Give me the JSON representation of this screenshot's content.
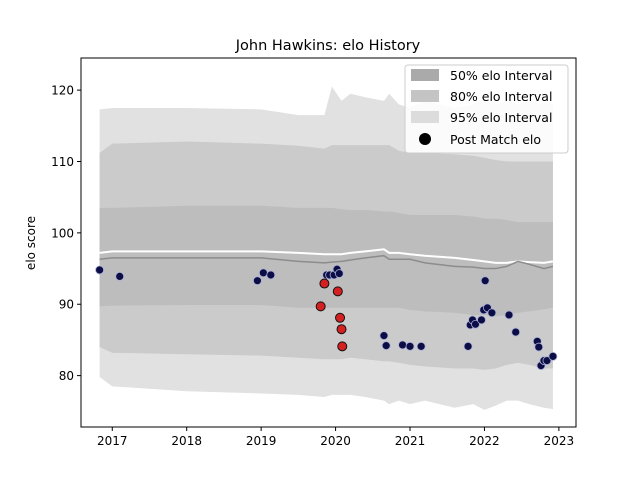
{
  "chart_data": {
    "type": "line",
    "title": "John Hawkins: elo History",
    "xlabel": "",
    "ylabel": "elo score",
    "xlim": [
      2016.58,
      2023.23
    ],
    "ylim": [
      72.8,
      124.5
    ],
    "x_ticks": [
      2017,
      2018,
      2019,
      2020,
      2021,
      2022,
      2023
    ],
    "x_tick_labels": [
      "2017",
      "2018",
      "2019",
      "2020",
      "2021",
      "2022",
      "2023"
    ],
    "y_ticks": [
      80,
      90,
      100,
      110,
      120
    ],
    "y_tick_labels": [
      "80",
      "90",
      "100",
      "110",
      "120"
    ],
    "legend": {
      "position": "top-right",
      "entries": [
        "50% elo Interval",
        "80% elo Interval",
        "95% elo Interval",
        "Post Match elo"
      ]
    },
    "band_x": [
      2016.83,
      2017.0,
      2018.0,
      2019.0,
      2019.5,
      2019.85,
      2019.95,
      2020.08,
      2020.2,
      2020.4,
      2020.65,
      2020.72,
      2020.85,
      2021.0,
      2021.2,
      2021.6,
      2021.85,
      2022.0,
      2022.15,
      2022.3,
      2022.45,
      2022.6,
      2022.8,
      2022.92
    ],
    "bands": {
      "p95_upper": [
        117.3,
        117.5,
        117.5,
        117.3,
        116.5,
        116.5,
        120.5,
        118.5,
        119.5,
        119.0,
        118.5,
        119.5,
        118.0,
        117.5,
        118.5,
        117.5,
        118.0,
        119.0,
        118.0,
        118.5,
        118.0,
        118.5,
        118.0,
        118.0
      ],
      "p80_upper": [
        111.2,
        112.5,
        112.8,
        112.5,
        112.2,
        111.8,
        112.3,
        112.3,
        112.3,
        112.3,
        112.3,
        112.3,
        111.5,
        111.2,
        111.2,
        111.0,
        110.8,
        110.5,
        110.2,
        110.0,
        110.0,
        110.0,
        110.0,
        110.0
      ],
      "p50_upper": [
        103.5,
        103.5,
        103.8,
        103.8,
        103.5,
        103.5,
        103.5,
        103.3,
        103.2,
        103.2,
        103.0,
        103.0,
        102.8,
        102.5,
        102.5,
        102.5,
        102.3,
        102.0,
        102.0,
        101.8,
        101.5,
        101.5,
        101.5,
        101.5
      ],
      "p50_lower": [
        89.7,
        89.8,
        89.9,
        89.9,
        89.5,
        89.5,
        89.5,
        89.5,
        89.5,
        89.5,
        89.5,
        89.5,
        89.5,
        89.2,
        89.0,
        88.8,
        88.5,
        88.5,
        88.3,
        88.5,
        88.8,
        89.0,
        89.3,
        89.5
      ],
      "p80_lower": [
        84.0,
        83.2,
        83.0,
        82.8,
        82.5,
        82.3,
        82.3,
        82.3,
        82.5,
        82.3,
        82.0,
        82.0,
        81.8,
        81.5,
        81.3,
        81.0,
        81.0,
        80.8,
        81.0,
        81.5,
        81.8,
        81.5,
        81.0,
        81.0
      ],
      "p95_lower": [
        79.8,
        78.5,
        77.8,
        77.5,
        77.3,
        77.0,
        77.3,
        77.3,
        77.3,
        77.0,
        76.5,
        76.0,
        76.5,
        76.0,
        76.5,
        75.5,
        76.0,
        75.2,
        75.8,
        76.5,
        76.5,
        76.0,
        75.5,
        75.3
      ]
    },
    "series": [
      {
        "name": "",
        "role": "mean_line_white",
        "x": [
          2016.83,
          2017.0,
          2018.0,
          2019.0,
          2019.5,
          2019.85,
          2019.95,
          2020.08,
          2020.2,
          2020.4,
          2020.65,
          2020.72,
          2020.85,
          2021.0,
          2021.2,
          2021.6,
          2021.85,
          2022.0,
          2022.15,
          2022.3,
          2022.45,
          2022.6,
          2022.8,
          2022.92
        ],
        "y": [
          97.2,
          97.4,
          97.4,
          97.4,
          97.2,
          97.0,
          97.0,
          97.0,
          97.2,
          97.4,
          97.7,
          97.2,
          97.2,
          97.0,
          96.8,
          96.5,
          96.2,
          96.0,
          95.8,
          95.8,
          96.0,
          95.9,
          95.8,
          96.0
        ]
      },
      {
        "name": "",
        "role": "median_line_gray",
        "x": [
          2016.83,
          2017.0,
          2018.0,
          2019.0,
          2019.5,
          2019.85,
          2019.95,
          2020.08,
          2020.2,
          2020.4,
          2020.65,
          2020.72,
          2020.85,
          2021.0,
          2021.2,
          2021.6,
          2021.85,
          2022.0,
          2022.15,
          2022.3,
          2022.45,
          2022.6,
          2022.8,
          2022.92
        ],
        "y": [
          96.3,
          96.5,
          96.5,
          96.5,
          96.0,
          95.8,
          95.9,
          96.0,
          96.2,
          96.5,
          96.8,
          96.3,
          96.3,
          96.3,
          95.8,
          95.3,
          95.2,
          95.0,
          95.0,
          95.3,
          96.0,
          95.6,
          95.0,
          95.3
        ]
      },
      {
        "name": "Post Match elo",
        "role": "post_match_points",
        "x": [
          2016.83,
          2017.1,
          2018.95,
          2019.03,
          2019.13,
          2019.88,
          2019.92,
          2019.98,
          2020.02,
          2020.05,
          2020.65,
          2020.68,
          2020.9,
          2021.0,
          2021.15,
          2021.78,
          2021.81,
          2021.84,
          2021.88,
          2021.96,
          2021.99,
          2022.01,
          2022.04,
          2022.1,
          2022.33,
          2022.42,
          2022.71,
          2022.73,
          2022.76,
          2022.8,
          2022.84,
          2022.92
        ],
        "y": [
          94.8,
          93.9,
          93.3,
          94.4,
          94.1,
          94.1,
          94.1,
          94.1,
          94.9,
          94.3,
          85.6,
          84.2,
          84.3,
          84.1,
          84.1,
          84.1,
          87.1,
          87.8,
          87.2,
          87.8,
          89.2,
          93.3,
          89.5,
          88.8,
          88.5,
          86.1,
          84.8,
          84.0,
          81.4,
          82.1,
          82.1,
          82.7
        ]
      },
      {
        "name": "",
        "role": "highlighted_points_red",
        "x": [
          2019.8,
          2019.85,
          2020.03,
          2020.06,
          2020.08,
          2020.09
        ],
        "y": [
          89.7,
          92.9,
          91.8,
          88.1,
          86.5,
          84.1
        ]
      }
    ]
  },
  "colors": {
    "p95": "#e1e1e1",
    "p80": "#cbcbcb",
    "p50": "#bdbdbd",
    "mean_line": "#ffffff",
    "median_line": "#8c8c8c",
    "point_fill": "#0d0d45",
    "point_edge": "#aab0d8",
    "highlight_fill": "#d42020",
    "highlight_edge": "#111111",
    "legend_p50": "#aaaaaa",
    "legend_p80": "#c4c4c4",
    "legend_p95": "#dcdcdc"
  }
}
